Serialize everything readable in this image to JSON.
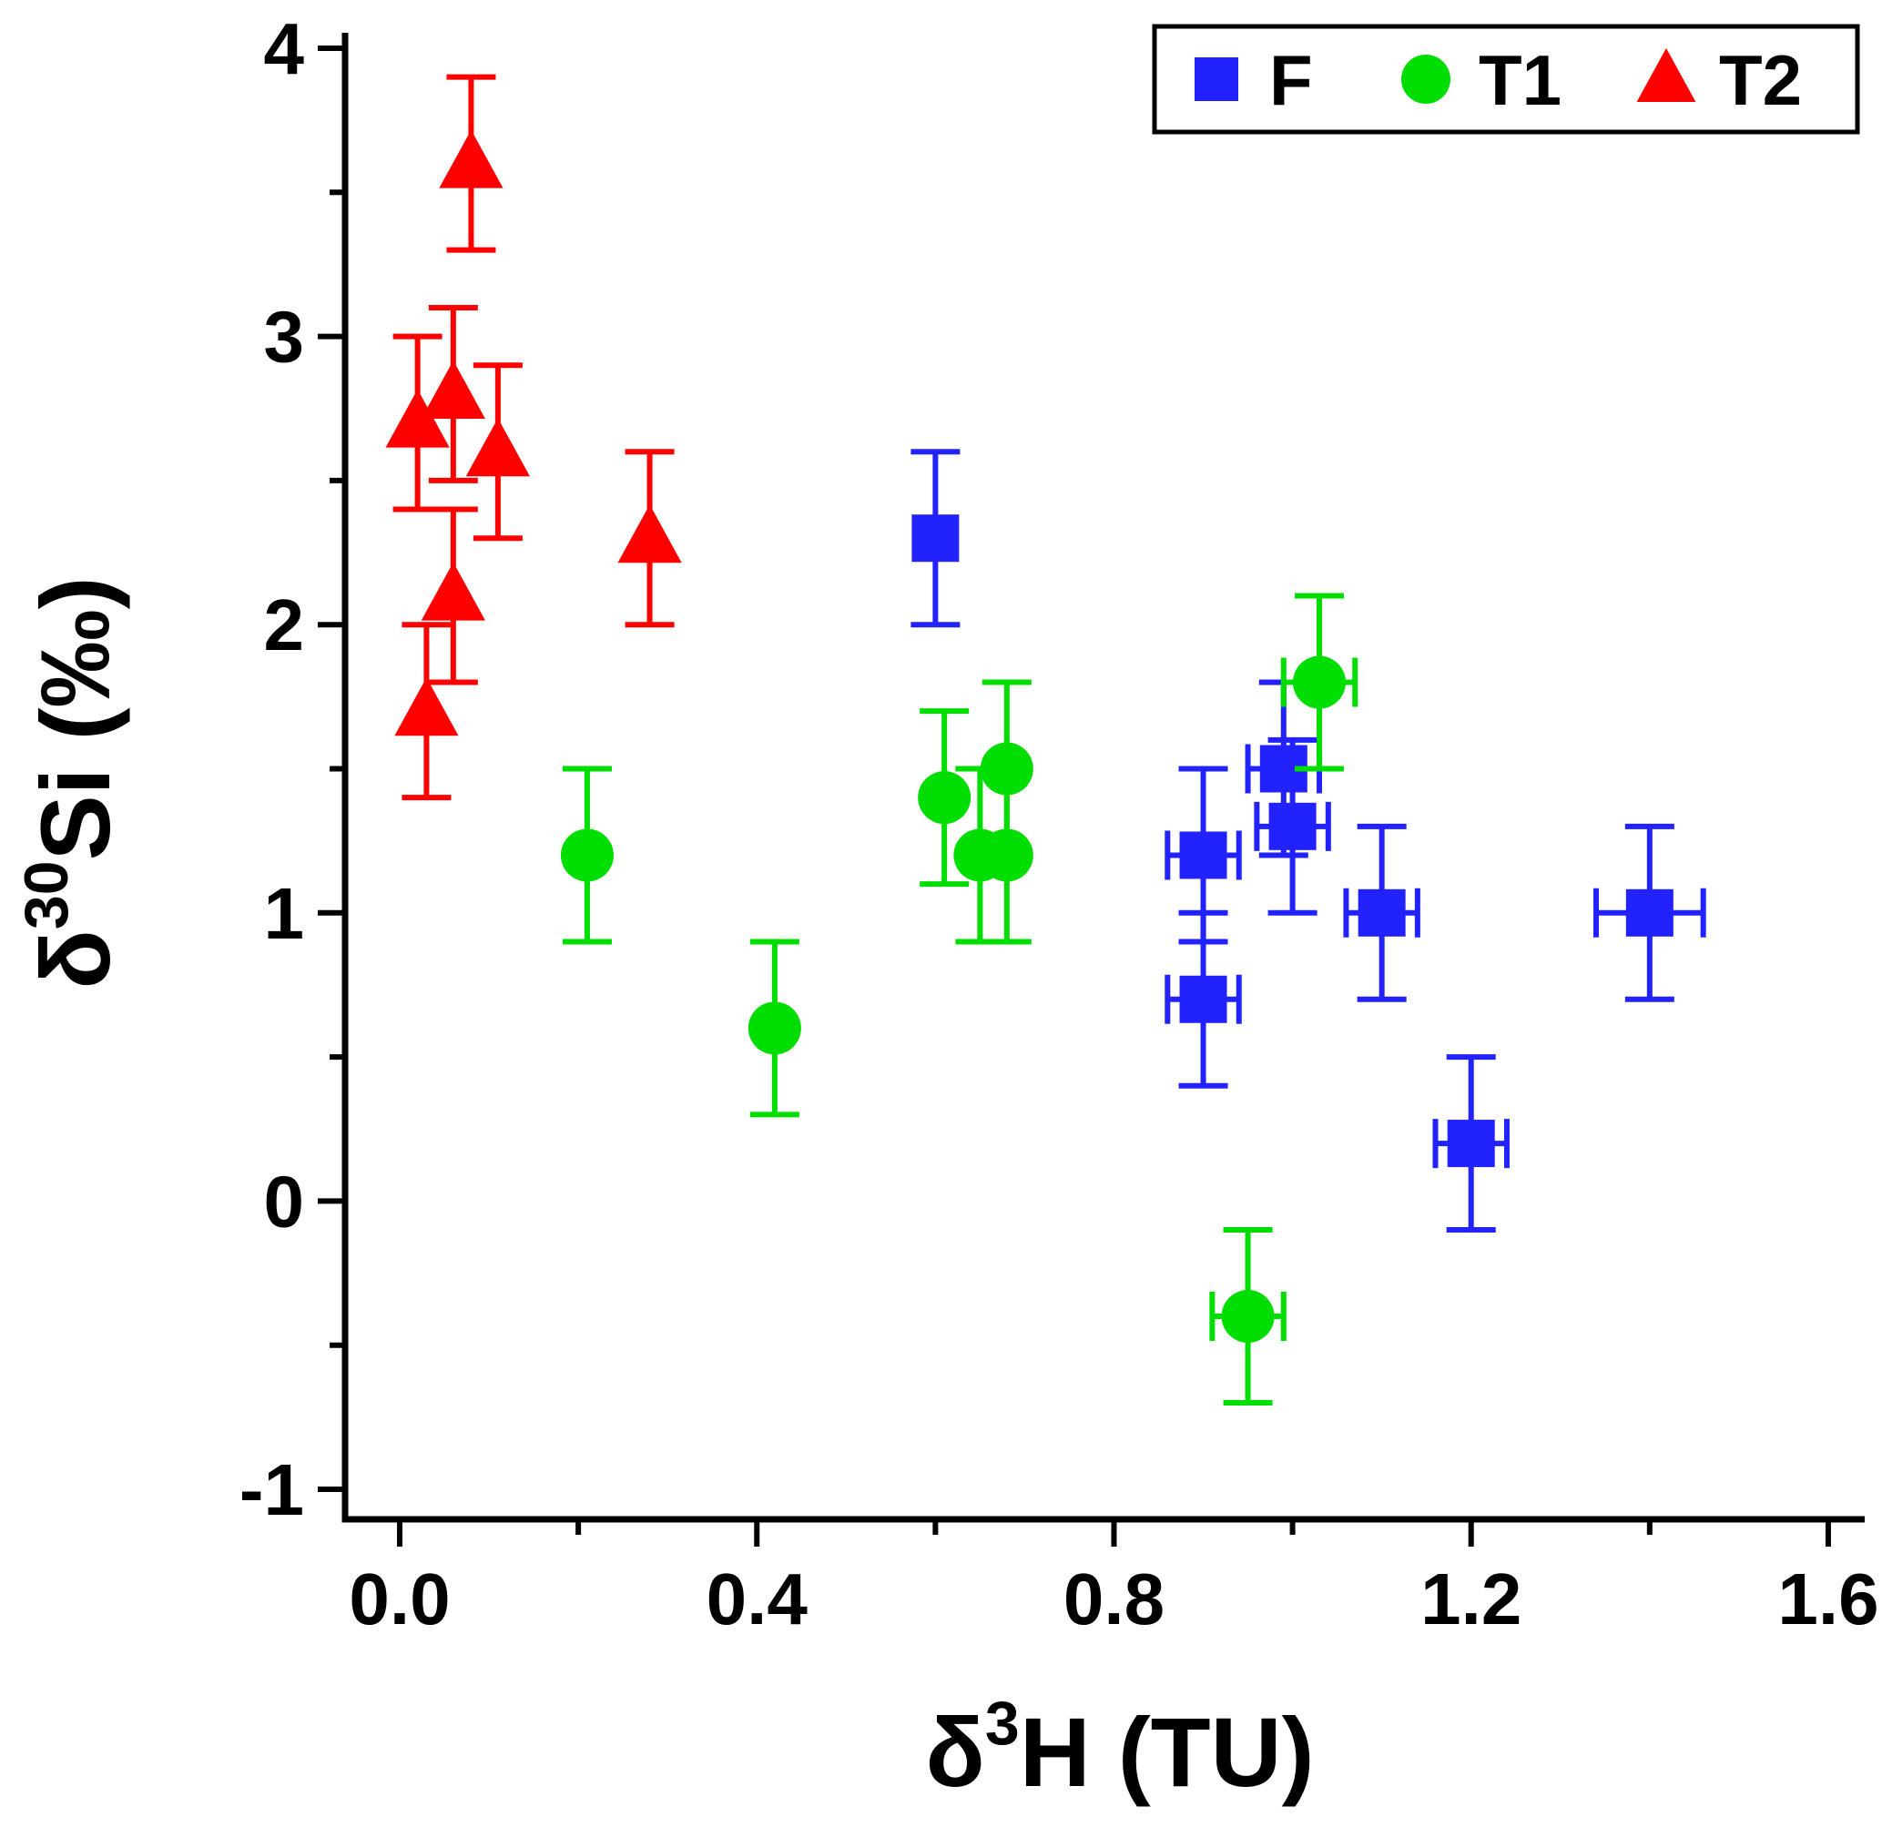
{
  "chart_data": {
    "type": "scatter",
    "title": "",
    "xlabel": {
      "base": "δ",
      "sup": "3",
      "rest": "H (TU)"
    },
    "ylabel": {
      "base": "δ",
      "sup": "30",
      "rest": "Si (‰)"
    },
    "grid": false,
    "x_axis": {
      "min": 0.0,
      "max": 1.6,
      "tick_values": [
        0.0,
        0.4,
        0.8,
        1.2,
        1.6
      ],
      "tick_labels": [
        "0.0",
        "0.4",
        "0.8",
        "1.2",
        "1.6"
      ],
      "minor_step": 0.2
    },
    "y_axis": {
      "min": -1,
      "max": 4,
      "tick_values": [
        -1,
        0,
        1,
        2,
        3,
        4
      ],
      "tick_labels": [
        "-1",
        "0",
        "1",
        "2",
        "3",
        "4"
      ],
      "minor_step": 0.5
    },
    "legend": {
      "position": "top-right",
      "entries": [
        {
          "label": "F",
          "marker": "square",
          "color": "#2222ff"
        },
        {
          "label": "T1",
          "marker": "circle",
          "color": "#00dd00"
        },
        {
          "label": "T2",
          "marker": "triangle",
          "color": "#ff0000"
        }
      ]
    },
    "series": [
      {
        "name": "F",
        "marker": "square",
        "color": "#2222ff",
        "points": [
          {
            "x": 0.6,
            "y": 2.3,
            "xerr": 0,
            "yerr": 0.3
          },
          {
            "x": 0.9,
            "y": 1.2,
            "xerr": 0.04,
            "yerr": 0.3
          },
          {
            "x": 0.99,
            "y": 1.5,
            "xerr": 0.04,
            "yerr": 0.3
          },
          {
            "x": 1.0,
            "y": 1.3,
            "xerr": 0.04,
            "yerr": 0.3
          },
          {
            "x": 1.1,
            "y": 1.0,
            "xerr": 0.04,
            "yerr": 0.3
          },
          {
            "x": 0.9,
            "y": 0.7,
            "xerr": 0.04,
            "yerr": 0.3
          },
          {
            "x": 1.4,
            "y": 1.0,
            "xerr": 0.06,
            "yerr": 0.3
          },
          {
            "x": 1.2,
            "y": 0.2,
            "xerr": 0.04,
            "yerr": 0.3
          }
        ]
      },
      {
        "name": "T1",
        "marker": "circle",
        "color": "#00dd00",
        "points": [
          {
            "x": 0.21,
            "y": 1.2,
            "xerr": 0,
            "yerr": 0.3
          },
          {
            "x": 0.42,
            "y": 0.6,
            "xerr": 0,
            "yerr": 0.3
          },
          {
            "x": 0.61,
            "y": 1.4,
            "xerr": 0,
            "yerr": 0.3
          },
          {
            "x": 0.68,
            "y": 1.5,
            "xerr": 0,
            "yerr": 0.3
          },
          {
            "x": 0.65,
            "y": 1.2,
            "xerr": 0,
            "yerr": 0.3
          },
          {
            "x": 0.68,
            "y": 1.2,
            "xerr": 0,
            "yerr": 0.3
          },
          {
            "x": 1.03,
            "y": 1.8,
            "xerr": 0.04,
            "yerr": 0.3
          },
          {
            "x": 0.95,
            "y": -0.4,
            "xerr": 0.04,
            "yerr": 0.3
          }
        ]
      },
      {
        "name": "T2",
        "marker": "triangle",
        "color": "#ff0000",
        "points": [
          {
            "x": 0.08,
            "y": 3.6,
            "xerr": 0,
            "yerr": 0.3
          },
          {
            "x": 0.06,
            "y": 2.8,
            "xerr": 0,
            "yerr": 0.3
          },
          {
            "x": 0.02,
            "y": 2.7,
            "xerr": 0,
            "yerr": 0.3
          },
          {
            "x": 0.11,
            "y": 2.6,
            "xerr": 0,
            "yerr": 0.3
          },
          {
            "x": 0.06,
            "y": 2.1,
            "xerr": 0,
            "yerr": 0.3
          },
          {
            "x": 0.03,
            "y": 1.7,
            "xerr": 0,
            "yerr": 0.3
          },
          {
            "x": 0.28,
            "y": 2.3,
            "xerr": 0,
            "yerr": 0.3
          }
        ]
      }
    ]
  }
}
